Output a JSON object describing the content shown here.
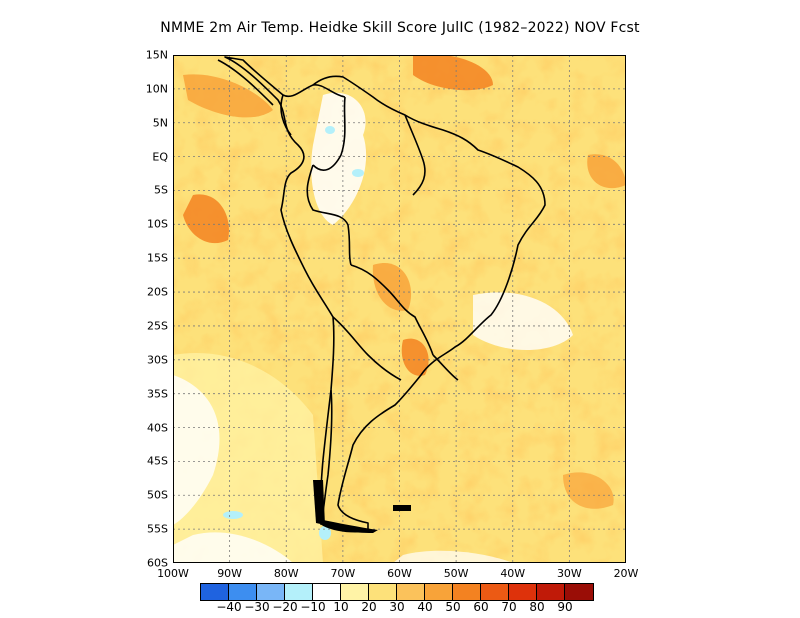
{
  "title": "NMME  2m Air Temp. Heidke Skill Score JulIC (1982–2022) NOV Fcst",
  "map": {
    "lat_labels": [
      "15N",
      "10N",
      "5N",
      "EQ",
      "5S",
      "10S",
      "15S",
      "20S",
      "25S",
      "30S",
      "35S",
      "40S",
      "45S",
      "50S",
      "55S",
      "60S"
    ],
    "lon_labels": [
      "100W",
      "90W",
      "80W",
      "70W",
      "60W",
      "50W",
      "40W",
      "30W",
      "20W"
    ],
    "extent": {
      "lon": [
        -100,
        -20
      ],
      "lat": [
        -60,
        15
      ]
    }
  },
  "colorbar": {
    "colors": [
      "#1f63e0",
      "#3d8ef0",
      "#79b6f7",
      "#b4f0fa",
      "#ffffff",
      "#fff3a6",
      "#fde17a",
      "#fbc25b",
      "#f8a339",
      "#f38221",
      "#ec5a14",
      "#de320b",
      "#c01a08",
      "#9a0d06"
    ],
    "labels": [
      "−40",
      "−30",
      "−20",
      "−10",
      "10",
      "20",
      "30",
      "40",
      "50",
      "60",
      "70",
      "80",
      "90"
    ]
  },
  "colors": {
    "coast": "#000000",
    "grid": "#7a7a7a"
  }
}
